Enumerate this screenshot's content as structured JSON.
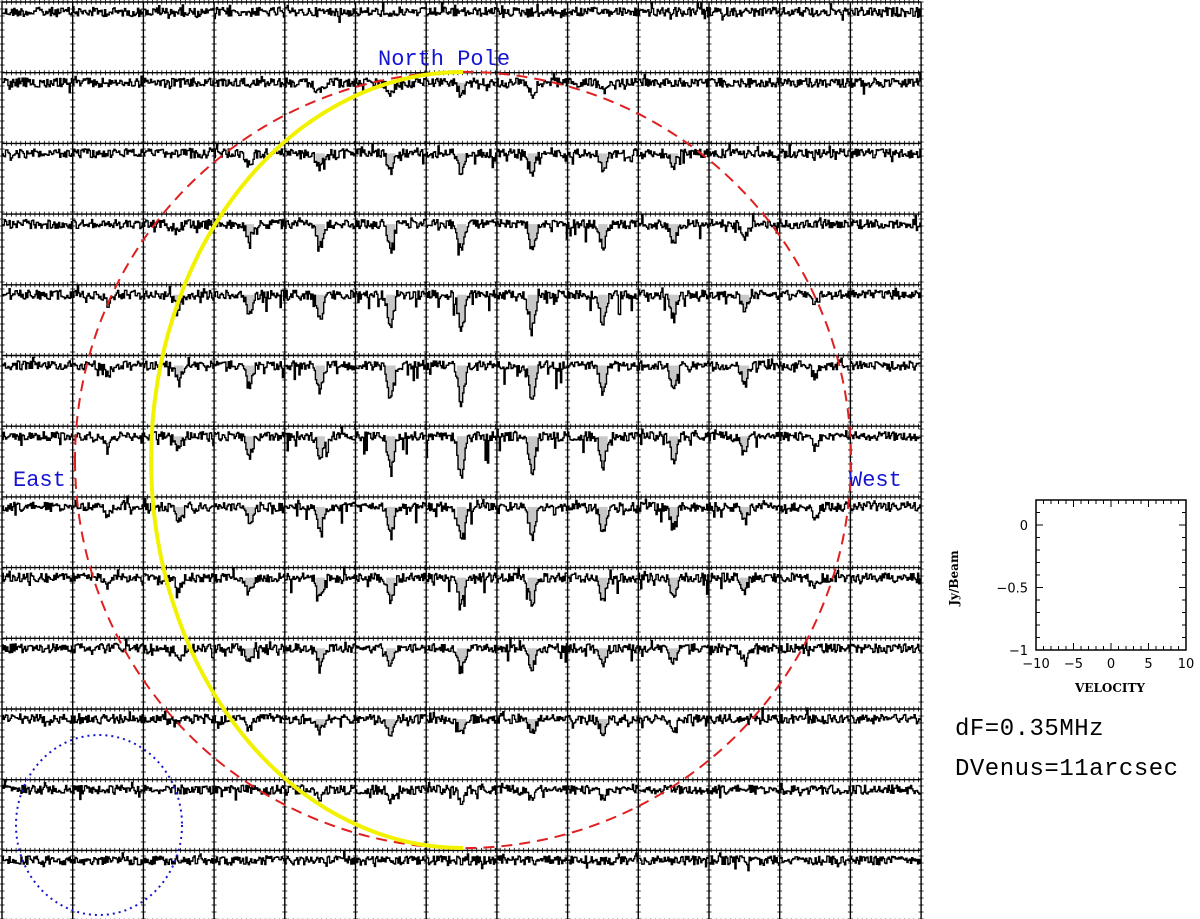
{
  "chart_data": {
    "type": "spectral-map",
    "grid": {
      "rows": 13,
      "cols": 13
    },
    "panel_xlim": [
      -10,
      10
    ],
    "panel_ylim": [
      -1,
      0.2
    ],
    "absorption_feature_velocity": 0,
    "annotations": {
      "north": "North Pole",
      "east": "East",
      "west": "West"
    },
    "overlays": {
      "planet_disk": {
        "style": "dashed",
        "color": "#e02020",
        "diameter_arcsec": 11
      },
      "terminator": {
        "color": "#f2f200"
      },
      "beam": {
        "style": "dotted",
        "color": "#1414d2"
      }
    },
    "scale_box": {
      "xlabel": "VELOCITY",
      "ylabel": "Jy/Beam",
      "xticks": [
        "−10",
        "−5",
        "0",
        "5",
        "10"
      ],
      "xtick_values": [
        -10,
        -5,
        0,
        5,
        10
      ],
      "yticks": [
        "0",
        "−0.5",
        "−1"
      ],
      "ytick_values": [
        0,
        -0.5,
        -1
      ]
    }
  },
  "info": {
    "line1": "dF=0.35MHz",
    "line2": "DVenus=11arcsec"
  }
}
